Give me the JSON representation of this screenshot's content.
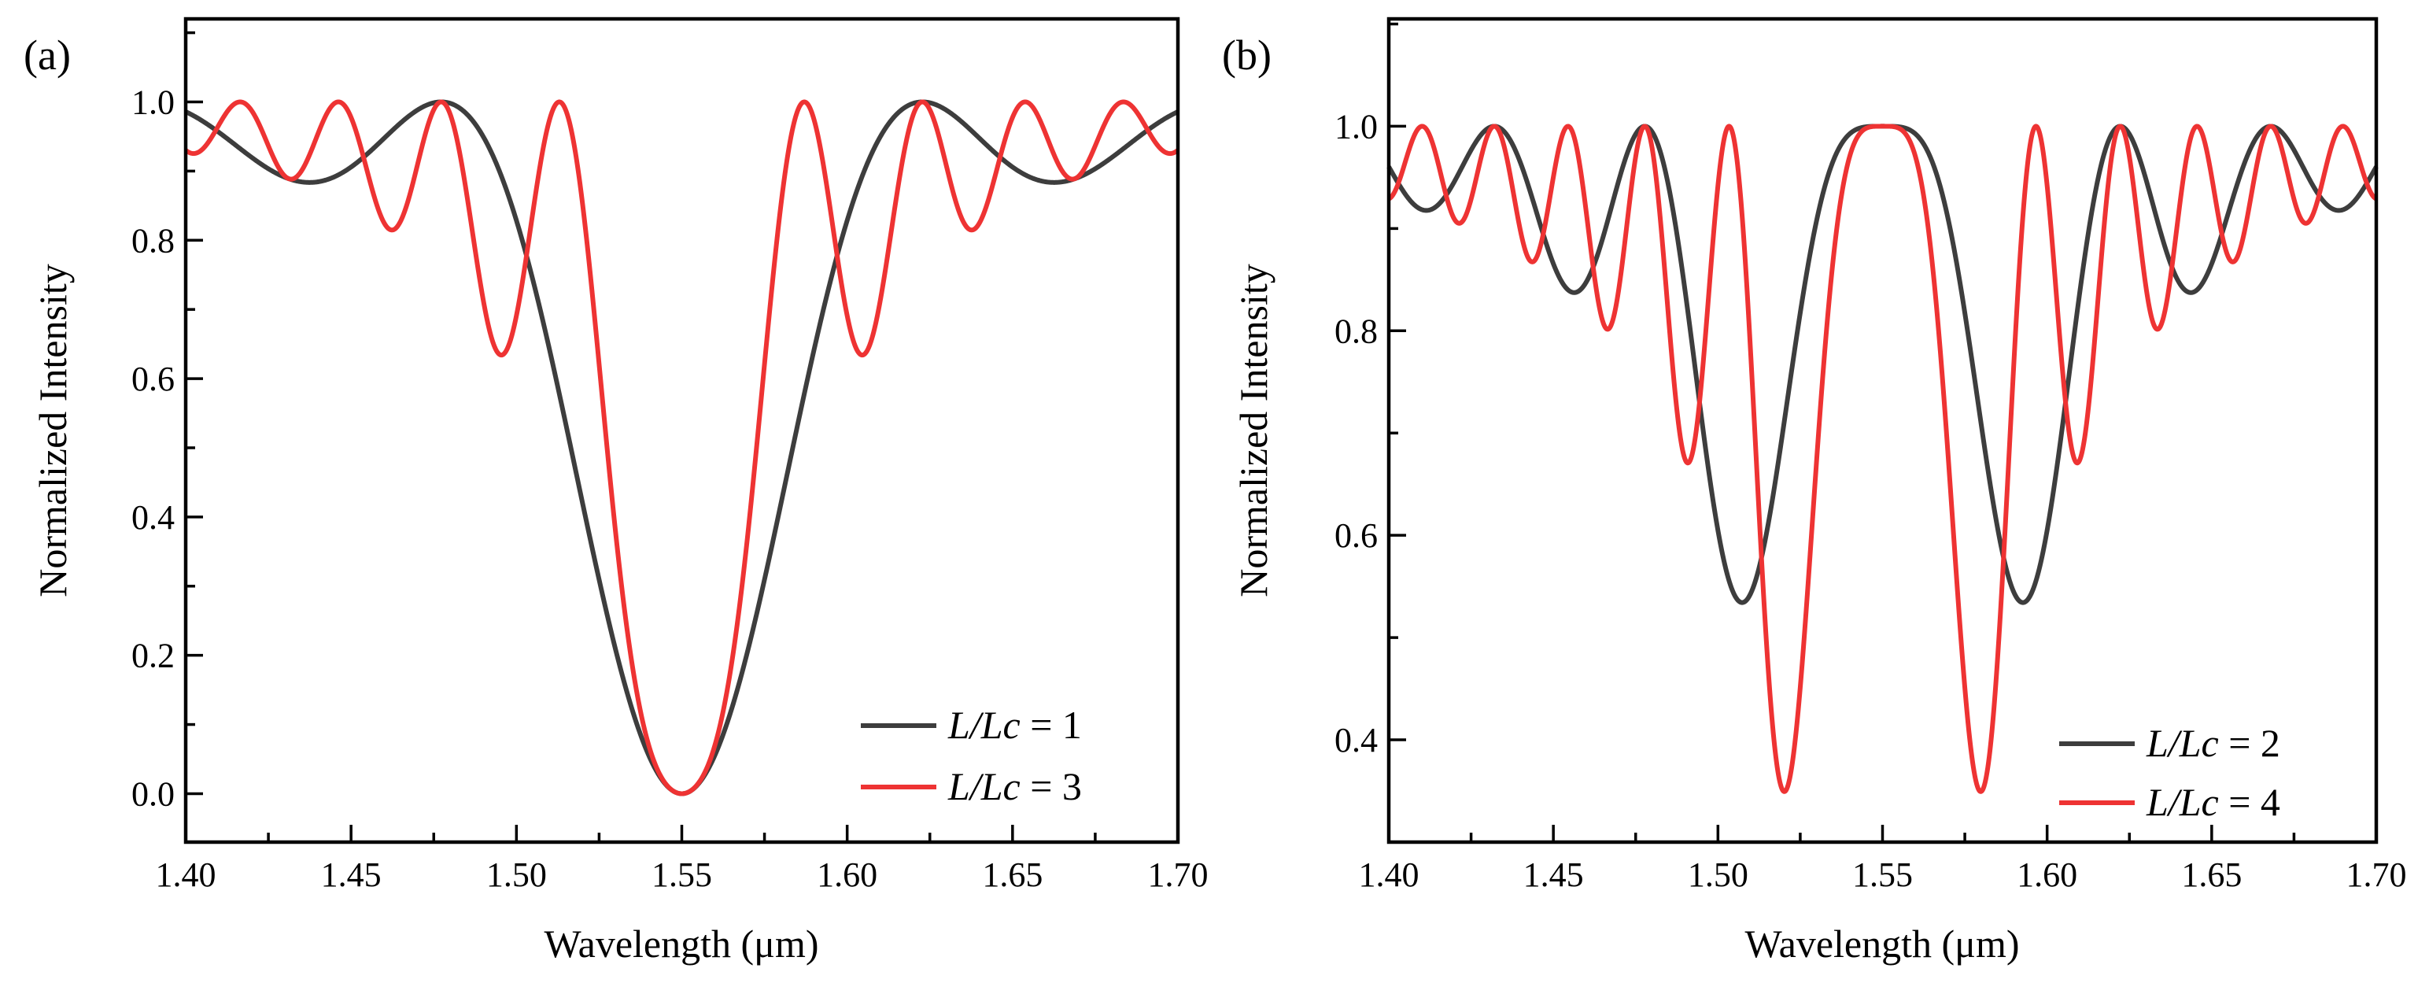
{
  "chart_data": [
    {
      "type": "line",
      "panel_label": "(a)",
      "xlabel": "Wavelength (μm)",
      "ylabel": "Normalized Intensity",
      "xlim": [
        1.4,
        1.7
      ],
      "ylim": [
        -0.07,
        1.12
      ],
      "x_ticks": [
        1.4,
        1.45,
        1.5,
        1.55,
        1.6,
        1.65,
        1.7
      ],
      "x_tick_labels": [
        "1.40",
        "1.45",
        "1.50",
        "1.55",
        "1.60",
        "1.65",
        "1.70"
      ],
      "y_ticks": [
        0.0,
        0.2,
        0.4,
        0.6,
        0.8,
        1.0
      ],
      "y_tick_labels": [
        "0.0",
        "0.2",
        "0.4",
        "0.6",
        "0.8",
        "1.0"
      ],
      "center_wavelength": 1.55,
      "legend_position": "bottom-right",
      "series": [
        {
          "name": "L/Lc = 1",
          "label_var": "L/Lc",
          "label_value": "= 1",
          "color": "#3d3d3d",
          "ratio": 1
        },
        {
          "name": "L/Lc = 3",
          "label_var": "L/Lc",
          "label_value": "= 3",
          "color": "#ee3333",
          "ratio": 3
        }
      ]
    },
    {
      "type": "line",
      "panel_label": "(b)",
      "xlabel": "Wavelength (μm)",
      "ylabel": "Normalized Intensity",
      "xlim": [
        1.4,
        1.7
      ],
      "ylim": [
        0.3,
        1.105
      ],
      "x_ticks": [
        1.4,
        1.45,
        1.5,
        1.55,
        1.6,
        1.65,
        1.7
      ],
      "x_tick_labels": [
        "1.40",
        "1.45",
        "1.50",
        "1.55",
        "1.60",
        "1.65",
        "1.70"
      ],
      "y_ticks": [
        0.4,
        0.6,
        0.8,
        1.0
      ],
      "y_tick_labels": [
        "0.4",
        "0.6",
        "0.8",
        "1.0"
      ],
      "center_wavelength": 1.55,
      "legend_position": "bottom-right",
      "series": [
        {
          "name": "L/Lc = 2",
          "label_var": "L/Lc",
          "label_value": "= 2",
          "color": "#3d3d3d",
          "ratio": 2
        },
        {
          "name": "L/Lc = 4",
          "label_var": "L/Lc",
          "label_value": "= 4",
          "color": "#ee3333",
          "ratio": 4
        }
      ]
    }
  ]
}
